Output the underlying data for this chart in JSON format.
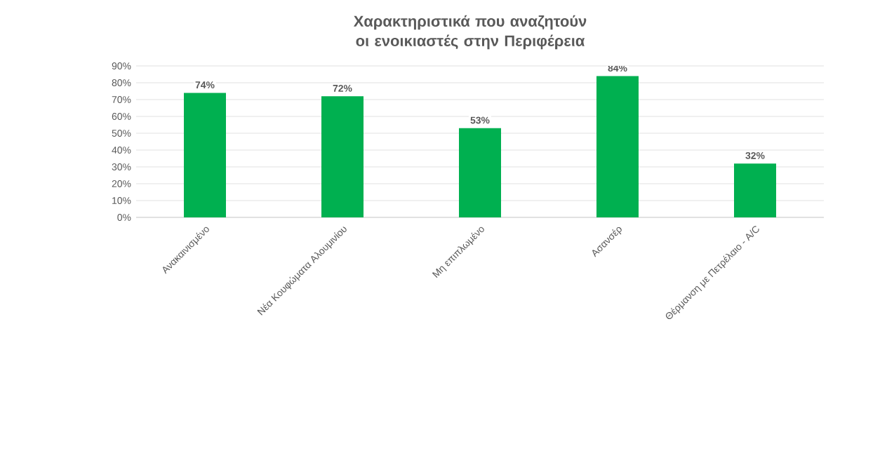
{
  "chart_data": {
    "type": "bar",
    "title": "Χαρακτηριστικά που αναζητούν οι ενοικιαστές στην Περιφέρεια",
    "categories": [
      "Ανακαινισμένο",
      "Νέα Κουφώματα Αλουμινίου",
      "Μη επιπλωμένο",
      "Ασανσέρ",
      "Θέρμανση με Πετρέλαιο - A/C"
    ],
    "values": [
      74,
      72,
      53,
      84,
      32
    ],
    "value_labels": [
      "74%",
      "72%",
      "53%",
      "84%",
      "32%"
    ],
    "color": "#00b050",
    "ylim": [
      0,
      90
    ],
    "yticks": [
      {
        "value": 0,
        "label": "0%"
      },
      {
        "value": 10,
        "label": "10%"
      },
      {
        "value": 20,
        "label": "20%"
      },
      {
        "value": 30,
        "label": "30%"
      },
      {
        "value": 40,
        "label": "40%"
      },
      {
        "value": 50,
        "label": "50%"
      },
      {
        "value": 60,
        "label": "60%"
      },
      {
        "value": 70,
        "label": "70%"
      },
      {
        "value": 80,
        "label": "80%"
      },
      {
        "value": 90,
        "label": "90%"
      }
    ],
    "grid": "y"
  }
}
